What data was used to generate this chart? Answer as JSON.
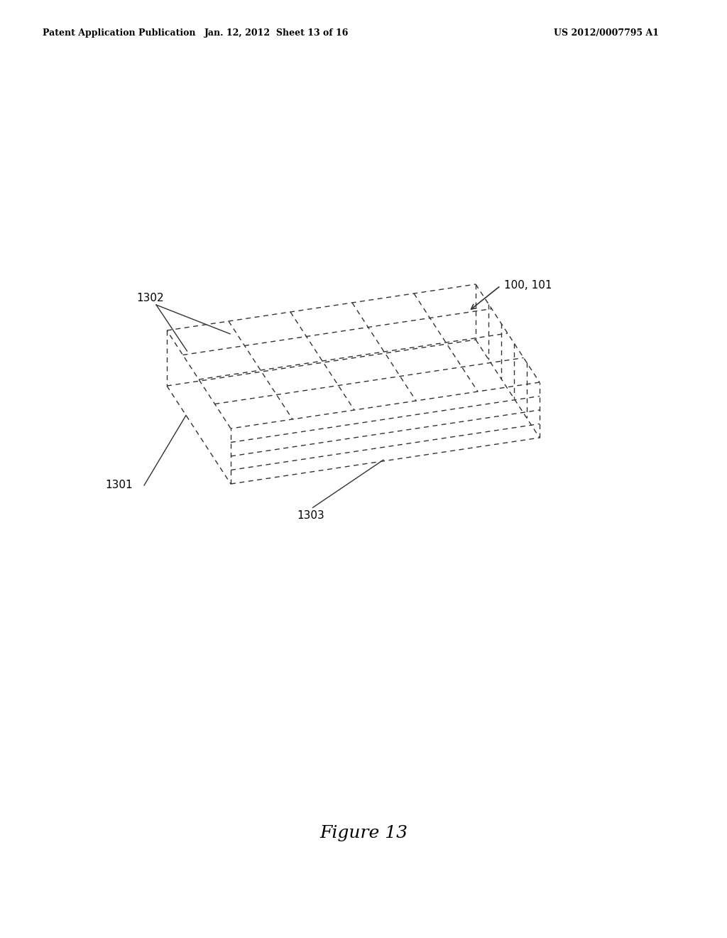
{
  "background_color": "#ffffff",
  "header_left": "Patent Application Publication",
  "header_center": "Jan. 12, 2012  Sheet 13 of 16",
  "header_right": "US 2012/0007795 A1",
  "figure_caption": "Figure 13",
  "label_100_101": "100, 101",
  "label_1301": "1301",
  "label_1302": "1302",
  "label_1303": "1303",
  "line_color": "#333333",
  "line_width": 1.0,
  "grid_cols": 5,
  "grid_rows": 4
}
